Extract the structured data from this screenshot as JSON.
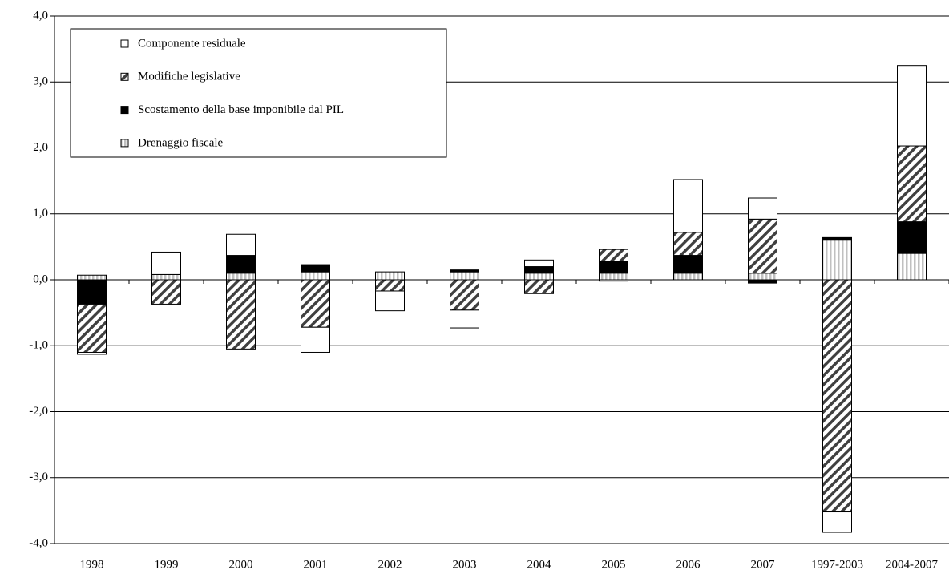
{
  "chart_data": {
    "type": "stacked-bar",
    "categories": [
      "1998",
      "1999",
      "2000",
      "2001",
      "2002",
      "2003",
      "2004",
      "2005",
      "2006",
      "2007",
      "1997-2003",
      "2004-2007"
    ],
    "series": [
      {
        "name": "Drenaggio fiscale",
        "color": "#c0c0c0",
        "pattern": "vertical",
        "values": [
          0.07,
          0.08,
          0.1,
          0.12,
          0.12,
          0.12,
          0.1,
          0.1,
          0.1,
          0.1,
          0.6,
          0.4
        ]
      },
      {
        "name": "Scostamento della base imponibile dal PIL",
        "color": "#000000",
        "pattern": "solid",
        "values": [
          -0.37,
          0,
          0.27,
          0.11,
          0,
          0.03,
          0.1,
          0.18,
          0.27,
          -0.05,
          0.04,
          0.48
        ]
      },
      {
        "name": "Modifiche legislative",
        "color": "#404040",
        "pattern": "diagonal",
        "values": [
          -0.73,
          -0.37,
          -1.05,
          -0.72,
          -0.17,
          -0.46,
          -0.21,
          0.18,
          0.35,
          0.82,
          -3.52,
          1.15
        ]
      },
      {
        "name": "Componente residuale",
        "color": "#ffffff",
        "pattern": "solid",
        "values": [
          -0.03,
          0.34,
          0.32,
          -0.38,
          -0.3,
          -0.27,
          0.1,
          -0.02,
          0.8,
          0.32,
          -0.31,
          1.22
        ]
      }
    ],
    "ylim": [
      -4,
      4
    ],
    "yticks": [
      {
        "value": -4,
        "label": "-4,0"
      },
      {
        "value": -3,
        "label": "-3,0"
      },
      {
        "value": -2,
        "label": "-2,0"
      },
      {
        "value": -1,
        "label": "-1,0"
      },
      {
        "value": 0,
        "label": "0,0"
      },
      {
        "value": 1,
        "label": "1,0"
      },
      {
        "value": 2,
        "label": "2,0"
      },
      {
        "value": 3,
        "label": "3,0"
      },
      {
        "value": 4,
        "label": "4,0"
      }
    ],
    "grid": true,
    "legend": "top-left"
  }
}
